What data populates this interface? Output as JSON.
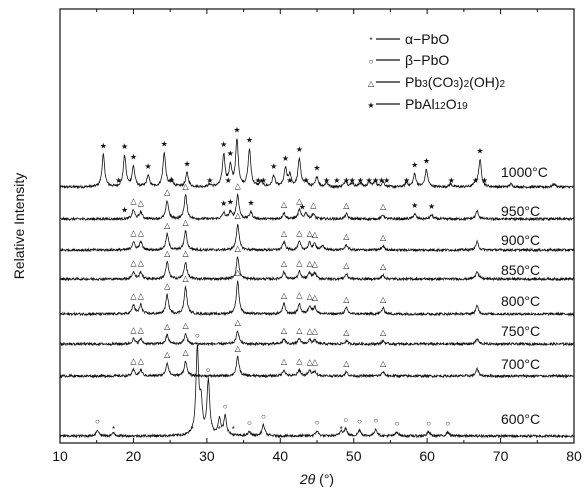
{
  "chart_data": {
    "type": "line",
    "xlabel_parts": {
      "symbol": "2θ",
      "unit": "(°)"
    },
    "ylabel": "Relative Intensity",
    "xlim": [
      10,
      80
    ],
    "xticks": [
      10,
      20,
      30,
      40,
      50,
      60,
      70,
      80
    ],
    "yticks": "none",
    "grid": false,
    "legend_position": "top-right",
    "legend": [
      {
        "marker": "*",
        "name_parts": [
          "α−PbO"
        ]
      },
      {
        "marker": "○",
        "name_parts": [
          "β−PbO"
        ]
      },
      {
        "marker": "△",
        "name_parts": [
          "Pb",
          "3",
          "(CO",
          "3",
          ")",
          "2",
          "(OH)",
          "2"
        ]
      },
      {
        "marker": "★",
        "name_parts": [
          "PbAl",
          "12",
          "O",
          "19"
        ]
      }
    ],
    "series": [
      {
        "name": "1000°C",
        "peaks": [
          [
            15.9,
            1.6
          ],
          [
            18.8,
            1.55
          ],
          [
            20.0,
            1.0
          ],
          [
            22.0,
            0.55
          ],
          [
            24.2,
            1.7
          ],
          [
            25.2,
            0.35
          ],
          [
            27.3,
            0.7
          ],
          [
            30.4,
            0.12
          ],
          [
            32.3,
            1.6
          ],
          [
            33.2,
            1.0
          ],
          [
            34.1,
            2.3
          ],
          [
            35.8,
            1.85
          ],
          [
            37.4,
            0.25
          ],
          [
            39.1,
            0.55
          ],
          [
            40.7,
            0.9
          ],
          [
            41.3,
            0.55
          ],
          [
            42.6,
            1.4
          ],
          [
            43.5,
            0.3
          ],
          [
            45.0,
            0.5
          ],
          [
            46.3,
            0.2
          ],
          [
            48.9,
            0.3
          ],
          [
            49.8,
            0.2
          ],
          [
            50.9,
            0.2
          ],
          [
            52.1,
            0.25
          ],
          [
            52.9,
            0.3
          ],
          [
            54.0,
            0.25
          ],
          [
            57.2,
            0.2
          ],
          [
            58.3,
            0.65
          ],
          [
            59.9,
            0.85
          ],
          [
            63.2,
            0.15
          ],
          [
            66.6,
            0.2
          ],
          [
            67.2,
            1.35
          ],
          [
            71.4,
            0.15
          ],
          [
            77.3,
            0.15
          ]
        ],
        "marker_rows": [
          {
            "symbol": "★",
            "x": [
              15.9,
              18.8,
              20.0,
              22.0,
              24.2,
              27.3,
              32.3,
              33.2,
              34.1,
              35.8,
              39.1,
              40.7,
              42.6,
              45.0,
              58.3,
              59.9,
              67.2
            ],
            "level": "peak"
          },
          {
            "symbol": "★",
            "x": [
              18.0,
              25.2,
              30.4,
              32.9,
              37.0,
              37.7,
              41.3,
              43.5,
              46.3,
              47.7,
              49.0,
              49.8,
              50.9,
              52.1,
              53.0,
              53.8,
              54.5,
              57.2,
              63.3,
              66.6,
              67.8
            ],
            "level": "low"
          }
        ]
      },
      {
        "name": "950°C",
        "peaks": [
          [
            20.0,
            0.45
          ],
          [
            21.0,
            0.35
          ],
          [
            24.6,
            0.9
          ],
          [
            27.1,
            1.2
          ],
          [
            32.3,
            0.3
          ],
          [
            33.2,
            0.35
          ],
          [
            34.2,
            1.2
          ],
          [
            36.0,
            0.35
          ],
          [
            40.5,
            0.3
          ],
          [
            42.6,
            0.45
          ],
          [
            43.5,
            0.3
          ],
          [
            44.5,
            0.25
          ],
          [
            49.0,
            0.25
          ],
          [
            54.0,
            0.2
          ],
          [
            58.3,
            0.25
          ],
          [
            60.6,
            0.2
          ],
          [
            66.8,
            0.4
          ]
        ],
        "marker_rows": [
          {
            "symbol": "△",
            "x": [
              20.0,
              21.0,
              24.6,
              27.1,
              34.2,
              40.5,
              42.6,
              44.5,
              49.0,
              54.0
            ],
            "level": "peak"
          },
          {
            "symbol": "★",
            "x": [
              18.8,
              32.3,
              33.2,
              36.0,
              43.0,
              58.3,
              60.6
            ],
            "level": "peak"
          }
        ]
      },
      {
        "name": "900°C",
        "peaks": [
          [
            20.0,
            0.4
          ],
          [
            21.0,
            0.4
          ],
          [
            24.6,
            0.8
          ],
          [
            27.1,
            0.95
          ],
          [
            34.2,
            1.3
          ],
          [
            40.5,
            0.4
          ],
          [
            42.6,
            0.4
          ],
          [
            44.0,
            0.35
          ],
          [
            44.7,
            0.3
          ],
          [
            45.8,
            0.2
          ],
          [
            49.0,
            0.25
          ],
          [
            54.0,
            0.2
          ],
          [
            66.8,
            0.4
          ]
        ],
        "marker_rows": [
          {
            "symbol": "△",
            "x": [
              20.0,
              21.0,
              24.6,
              27.1,
              34.2,
              40.5,
              42.6,
              44.0,
              44.7,
              49.0,
              54.0
            ],
            "level": "peak"
          }
        ]
      },
      {
        "name": "850°C",
        "peaks": [
          [
            20.0,
            0.35
          ],
          [
            21.0,
            0.35
          ],
          [
            24.6,
            0.85
          ],
          [
            27.1,
            0.85
          ],
          [
            34.2,
            1.1
          ],
          [
            40.5,
            0.35
          ],
          [
            42.6,
            0.35
          ],
          [
            44.0,
            0.3
          ],
          [
            44.7,
            0.3
          ],
          [
            49.0,
            0.25
          ],
          [
            54.0,
            0.2
          ],
          [
            66.8,
            0.4
          ]
        ],
        "marker_rows": [
          {
            "symbol": "△",
            "x": [
              20.0,
              21.0,
              24.6,
              27.1,
              34.2,
              40.5,
              42.6,
              44.0,
              44.7,
              49.0,
              54.0
            ],
            "level": "peak"
          }
        ]
      },
      {
        "name": "800°C",
        "peaks": [
          [
            20.0,
            0.45
          ],
          [
            21.0,
            0.45
          ],
          [
            24.6,
            0.95
          ],
          [
            27.1,
            1.35
          ],
          [
            34.2,
            1.65
          ],
          [
            40.5,
            0.5
          ],
          [
            42.6,
            0.5
          ],
          [
            44.0,
            0.4
          ],
          [
            44.7,
            0.35
          ],
          [
            49.0,
            0.3
          ],
          [
            54.0,
            0.3
          ],
          [
            66.8,
            0.4
          ]
        ],
        "marker_rows": [
          {
            "symbol": "△",
            "x": [
              20.0,
              21.0,
              24.6,
              27.1,
              34.2,
              40.5,
              42.6,
              44.0,
              44.7,
              49.0,
              54.0
            ],
            "level": "peak"
          }
        ]
      },
      {
        "name": "750°C",
        "peaks": [
          [
            20.0,
            0.25
          ],
          [
            21.0,
            0.25
          ],
          [
            24.6,
            0.45
          ],
          [
            27.1,
            0.5
          ],
          [
            34.2,
            0.65
          ],
          [
            40.5,
            0.25
          ],
          [
            42.6,
            0.25
          ],
          [
            44.0,
            0.2
          ],
          [
            44.7,
            0.2
          ],
          [
            49.0,
            0.15
          ],
          [
            54.0,
            0.15
          ],
          [
            66.8,
            0.25
          ]
        ],
        "marker_rows": [
          {
            "symbol": "△",
            "x": [
              20.0,
              21.0,
              24.6,
              27.1,
              34.2,
              40.5,
              42.6,
              44.0,
              44.7,
              49.0,
              54.0
            ],
            "level": "peak"
          }
        ]
      },
      {
        "name": "700°C",
        "peaks": [
          [
            20.0,
            0.3
          ],
          [
            21.0,
            0.3
          ],
          [
            24.6,
            0.65
          ],
          [
            27.1,
            0.75
          ],
          [
            34.2,
            0.95
          ],
          [
            40.5,
            0.3
          ],
          [
            42.6,
            0.3
          ],
          [
            44.0,
            0.25
          ],
          [
            44.7,
            0.25
          ],
          [
            49.0,
            0.2
          ],
          [
            54.0,
            0.2
          ],
          [
            66.8,
            0.35
          ]
        ],
        "marker_rows": [
          {
            "symbol": "△",
            "x": [
              20.0,
              21.0,
              24.6,
              27.1,
              34.2,
              40.5,
              42.6,
              44.0,
              44.7,
              49.0,
              54.0
            ],
            "level": "peak"
          }
        ]
      },
      {
        "name": "600°C",
        "peaks": [
          [
            15.1,
            0.3
          ],
          [
            17.3,
            0.15
          ],
          [
            28.7,
            4.3
          ],
          [
            29.2,
            1.5
          ],
          [
            30.2,
            2.7
          ],
          [
            31.7,
            0.8
          ],
          [
            32.5,
            0.95
          ],
          [
            35.8,
            0.2
          ],
          [
            37.7,
            0.55
          ],
          [
            45.0,
            0.25
          ],
          [
            48.3,
            0.25
          ],
          [
            48.9,
            0.35
          ],
          [
            50.8,
            0.3
          ],
          [
            53.0,
            0.35
          ],
          [
            55.9,
            0.2
          ],
          [
            60.2,
            0.2
          ],
          [
            62.8,
            0.2
          ]
        ],
        "marker_rows": [
          {
            "symbol": "○",
            "x": [
              15.1,
              28.7,
              30.2,
              32.5,
              35.8,
              37.7,
              45.0,
              48.9,
              50.8,
              53.0,
              55.9,
              60.2,
              62.8
            ],
            "level": "peak"
          },
          {
            "symbol": "*",
            "x": [
              17.3,
              28.0,
              31.7,
              33.6,
              48.3
            ],
            "level": "low"
          }
        ]
      }
    ]
  }
}
